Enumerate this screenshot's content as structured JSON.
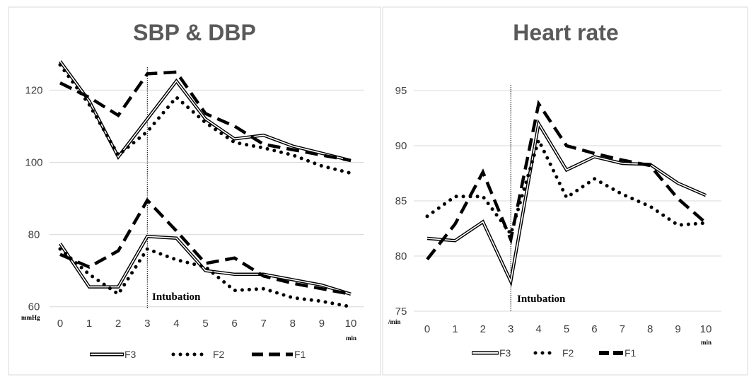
{
  "chart_data": [
    {
      "type": "line",
      "title": "SBP & DBP",
      "x": [
        0,
        1,
        2,
        3,
        4,
        5,
        6,
        7,
        8,
        9,
        10
      ],
      "x_unit": "min",
      "y_unit": "mmHg",
      "ylim": [
        60,
        130
      ],
      "yticks": [
        60,
        80,
        100,
        120
      ],
      "xticks": [
        0,
        1,
        2,
        3,
        4,
        5,
        6,
        7,
        8,
        9,
        10
      ],
      "grid": "horizontal",
      "legend_position": "bottom",
      "annotation": {
        "x": 3,
        "label": "Intubation"
      },
      "series": [
        {
          "name": "F3",
          "style": "double",
          "group": "SBP",
          "values": [
            128,
            117,
            101.5,
            112,
            122.5,
            112,
            106.5,
            107.5,
            104.5,
            102.5,
            100.5
          ]
        },
        {
          "name": "F2",
          "style": "dotted",
          "group": "SBP",
          "values": [
            127,
            116,
            102,
            108.5,
            118,
            111,
            105.5,
            104,
            102,
            99,
            97
          ]
        },
        {
          "name": "F1",
          "style": "dashed",
          "group": "SBP",
          "values": [
            122,
            118,
            113,
            124.5,
            125,
            113.5,
            110,
            105,
            103.5,
            102,
            100.5
          ]
        },
        {
          "name": "F3",
          "style": "double",
          "group": "DBP",
          "values": [
            77.5,
            65.5,
            65.5,
            79.5,
            79,
            70,
            69,
            69,
            67.5,
            66,
            63.5
          ]
        },
        {
          "name": "F2",
          "style": "dotted",
          "group": "DBP",
          "values": [
            76,
            69,
            63.5,
            76,
            73,
            71,
            64.5,
            65,
            62.5,
            61.5,
            60
          ]
        },
        {
          "name": "F1",
          "style": "dashed",
          "group": "DBP",
          "values": [
            74.5,
            71,
            75.5,
            89.5,
            81,
            72,
            73.5,
            68.5,
            66.5,
            65,
            63.5
          ]
        }
      ]
    },
    {
      "type": "line",
      "title": "Heart rate",
      "x": [
        0,
        1,
        2,
        3,
        4,
        5,
        6,
        7,
        8,
        9,
        10
      ],
      "x_unit": "min",
      "y_unit": "/min",
      "ylim": [
        75,
        95
      ],
      "yticks": [
        75,
        80,
        85,
        90,
        95
      ],
      "xticks": [
        0,
        1,
        2,
        3,
        4,
        5,
        6,
        7,
        8,
        9,
        10
      ],
      "grid": "horizontal",
      "legend_position": "bottom",
      "annotation": {
        "x": 3,
        "label": "Intubation"
      },
      "series": [
        {
          "name": "F3",
          "style": "double",
          "values": [
            81.6,
            81.4,
            83.1,
            77.7,
            92,
            87.8,
            89,
            88.4,
            88.3,
            86.6,
            85.5
          ]
        },
        {
          "name": "F2",
          "style": "dotted",
          "values": [
            83.6,
            85.4,
            85.4,
            82,
            90.5,
            85.3,
            87,
            85.6,
            84.5,
            82.8,
            83
          ]
        },
        {
          "name": "F1",
          "style": "dashed",
          "values": [
            79.7,
            82.9,
            87.6,
            81.5,
            93.8,
            90,
            89.3,
            88.7,
            88.2,
            85.2,
            83
          ]
        }
      ]
    }
  ],
  "colors": {
    "line": "#000000",
    "grid": "#d9d9d9",
    "title": "#595959",
    "tick": "#404040",
    "panel_border": "#d9d9d9"
  }
}
